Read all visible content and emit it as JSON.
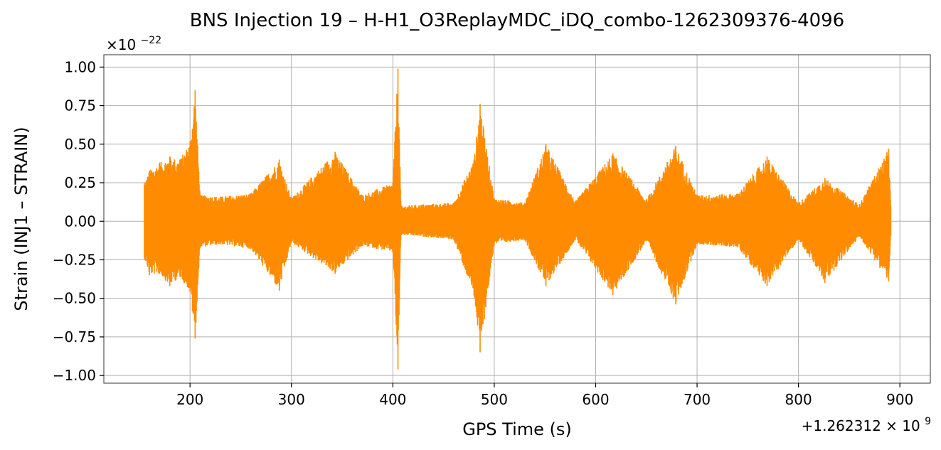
{
  "chart_data": {
    "type": "line",
    "title": "BNS Injection 19 – H-H1_O3ReplayMDC_iDQ_combo-1262309376-4096",
    "xlabel": "GPS Time (s)",
    "ylabel": "Strain (INJ1 – STRAIN)",
    "x_offset_label": "+1.262312 × 10",
    "x_offset_exponent": "9",
    "y_scale_label": "×10",
    "y_scale_exponent": "−22",
    "xlim": [
      1262312115,
      1262312930
    ],
    "ylim": [
      -1.05e-22,
      1.08e-22
    ],
    "grid": true,
    "legend": "none",
    "line_color": "#ff8c00",
    "x_ticks": [
      {
        "value": 1262312200,
        "label": "200"
      },
      {
        "value": 1262312300,
        "label": "300"
      },
      {
        "value": 1262312400,
        "label": "400"
      },
      {
        "value": 1262312500,
        "label": "500"
      },
      {
        "value": 1262312600,
        "label": "600"
      },
      {
        "value": 1262312700,
        "label": "700"
      },
      {
        "value": 1262312800,
        "label": "800"
      },
      {
        "value": 1262312900,
        "label": "900"
      }
    ],
    "y_ticks": [
      {
        "value": 1e-22,
        "label": "1.00"
      },
      {
        "value": 7.5e-23,
        "label": "0.75"
      },
      {
        "value": 5e-23,
        "label": "0.50"
      },
      {
        "value": 2.5e-23,
        "label": "0.25"
      },
      {
        "value": 0.0,
        "label": "0.00"
      },
      {
        "value": -2.5e-23,
        "label": "−0.25"
      },
      {
        "value": -5e-23,
        "label": "−0.50"
      },
      {
        "value": -7.5e-23,
        "label": "−0.75"
      },
      {
        "value": -1e-22,
        "label": "−1.00"
      }
    ],
    "series": [
      {
        "x": [
          1262312155,
          1262312160,
          1262312170,
          1262312180,
          1262312190,
          1262312200,
          1262312205,
          1262312210,
          1262312230,
          1262312260,
          1262312288,
          1262312300,
          1262312343,
          1262312370,
          1262312400,
          1262312405,
          1262312408,
          1262312430,
          1262312460,
          1262312480,
          1262312486,
          1262312500,
          1262312530,
          1262312551,
          1262312580,
          1262312617,
          1262312650,
          1262312679,
          1262312700,
          1262312740,
          1262312769,
          1262312800,
          1262312826,
          1262312860,
          1262312889,
          1262312891
        ],
        "upper": [
          2.5e-23,
          3.3e-23,
          3.8e-23,
          4.2e-23,
          4e-23,
          5.2e-23,
          8.5e-23,
          1.7e-23,
          1.6e-23,
          1.8e-23,
          4e-23,
          1.5e-23,
          4.5e-23,
          1.7e-23,
          2.5e-23,
          9.9e-23,
          1e-23,
          1.1e-23,
          1.2e-23,
          4e-23,
          7.6e-23,
          1.5e-23,
          1.2e-23,
          5e-23,
          1.3e-23,
          4.4e-23,
          1.4e-23,
          4.9e-23,
          1.7e-23,
          1.8e-23,
          4.2e-23,
          1.2e-23,
          2.8e-23,
          1.1e-23,
          4.7e-23,
          1e-23
        ],
        "lower": [
          -2.4e-23,
          -3.5e-23,
          -3.4e-23,
          -4.2e-23,
          -3.6e-23,
          -4.6e-23,
          -7.6e-23,
          -1.7e-23,
          -1.5e-23,
          -1.8e-23,
          -4.5e-23,
          -1.4e-23,
          -3.4e-23,
          -1.6e-23,
          -2e-23,
          -9.6e-23,
          -9e-24,
          -1e-23,
          -1.2e-23,
          -4.8e-23,
          -8.5e-23,
          -1.5e-23,
          -1.2e-23,
          -4.2e-23,
          -1.2e-23,
          -4.8e-23,
          -1.3e-23,
          -5.4e-23,
          -1.5e-23,
          -1.7e-23,
          -4.2e-23,
          -1.2e-23,
          -4e-23,
          -1e-23,
          -3.9e-23,
          -9e-24
        ]
      }
    ]
  }
}
